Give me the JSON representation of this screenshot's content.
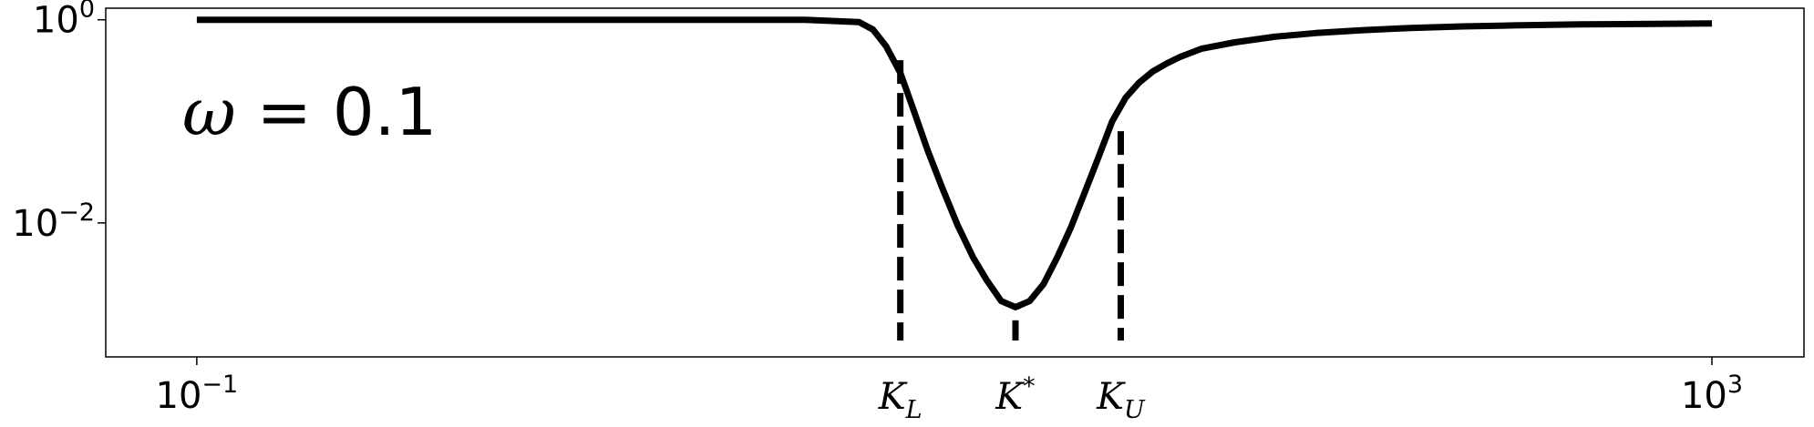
{
  "chart_data": {
    "type": "line",
    "title": "",
    "xlabel": "",
    "ylabel": "",
    "x_scale": "log",
    "y_scale": "log",
    "xlim": [
      0.0575,
      1750
    ],
    "ylim": [
      0.00048,
      1.3
    ],
    "grid": false,
    "annotation": {
      "symbol": "ω",
      "equals": " = ",
      "value": "0.1"
    },
    "x_ticks": [
      {
        "value": 0.1,
        "base": "10",
        "exp": "−1"
      },
      {
        "value": 1000,
        "base": "10",
        "exp": "3"
      }
    ],
    "y_ticks": [
      {
        "value": 1,
        "base": "10",
        "exp": "0"
      },
      {
        "value": 0.01,
        "base": "10",
        "exp": "−2"
      }
    ],
    "markers": [
      {
        "name": "K_L",
        "base": "K",
        "sub": "L",
        "sup": "",
        "x": 7.2,
        "y_top": 0.4
      },
      {
        "name": "K*",
        "base": "K",
        "sub": "",
        "sup": "*",
        "x": 14.5,
        "y_top": 0.0011
      },
      {
        "name": "K_U",
        "base": "K",
        "sub": "U",
        "sup": "",
        "x": 27.5,
        "y_top": 0.08
      }
    ],
    "series": [
      {
        "color": "#000000",
        "x": [
          0.1,
          0.5,
          1,
          2,
          4,
          5.6,
          6.1,
          6.6,
          7.2,
          7.8,
          8.5,
          9.3,
          10.2,
          11.2,
          12.2,
          13.3,
          14.5,
          15.8,
          17.2,
          18.7,
          20.3,
          22.1,
          24.0,
          26.1,
          28.3,
          30.7,
          33.4,
          36.3,
          39.4,
          45,
          55,
          70,
          90,
          120,
          160,
          220,
          300,
          450,
          700,
          1000
        ],
        "y": [
          1,
          1,
          1,
          1,
          1,
          0.95,
          0.8,
          0.55,
          0.3,
          0.13,
          0.052,
          0.022,
          0.0095,
          0.0046,
          0.0027,
          0.0017,
          0.00148,
          0.0017,
          0.0025,
          0.0046,
          0.009,
          0.02,
          0.044,
          0.1,
          0.17,
          0.24,
          0.31,
          0.37,
          0.43,
          0.52,
          0.6,
          0.68,
          0.74,
          0.79,
          0.83,
          0.86,
          0.88,
          0.9,
          0.91,
          0.92
        ]
      }
    ]
  }
}
